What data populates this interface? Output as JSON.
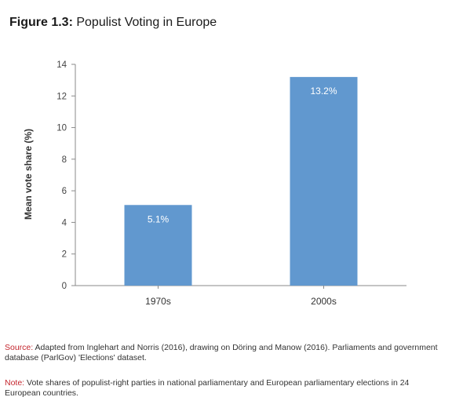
{
  "figure": {
    "label": "Figure 1.3:",
    "title": "Populist Voting in Europe"
  },
  "chart_data": {
    "type": "bar",
    "categories": [
      "1970s",
      "2000s"
    ],
    "values": [
      5.1,
      13.2
    ],
    "data_labels": [
      "5.1%",
      "13.2%"
    ],
    "ylabel": "Mean vote share (%)",
    "xlabel": "",
    "ylim": [
      0,
      14
    ],
    "yticks": [
      0,
      2,
      4,
      6,
      8,
      10,
      12,
      14
    ],
    "grid": false,
    "bar_color": "#6198cf",
    "label_color": "#ffffff"
  },
  "source": {
    "key": "Source:",
    "text": " Adapted from Inglehart and Norris (2016), drawing on Döring and Manow (2016). Parliaments and government database (ParlGov) 'Elections' dataset."
  },
  "note": {
    "key": "Note:",
    "text": " Vote shares of populist-right parties in national parliamentary and European parliamentary elections in 24 European countries."
  }
}
